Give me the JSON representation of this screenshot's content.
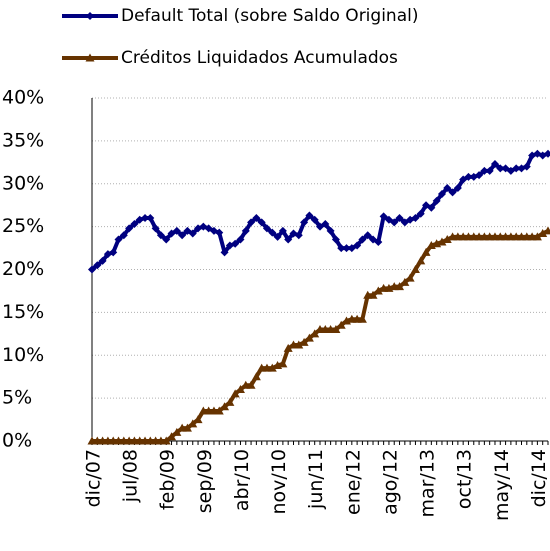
{
  "chart_data": {
    "type": "line",
    "categories": [
      "dic/07",
      null,
      null,
      null,
      null,
      null,
      null,
      "jul/08",
      null,
      null,
      null,
      null,
      null,
      null,
      "feb/09",
      null,
      null,
      null,
      null,
      null,
      null,
      "sep/09",
      null,
      null,
      null,
      null,
      null,
      null,
      "abr/10",
      null,
      null,
      null,
      null,
      null,
      null,
      "nov/10",
      null,
      null,
      null,
      null,
      null,
      null,
      "jun/11",
      null,
      null,
      null,
      null,
      null,
      null,
      "ene/12",
      null,
      null,
      null,
      null,
      null,
      null,
      "ago/12",
      null,
      null,
      null,
      null,
      null,
      null,
      "mar/13",
      null,
      null,
      null,
      null,
      null,
      null,
      "oct/13",
      null,
      null,
      null,
      null,
      null,
      null,
      "may/14",
      null,
      null,
      null,
      null,
      null,
      null,
      "dic/14",
      null,
      null
    ],
    "series": [
      {
        "name": "Default Total (sobre Saldo Original)",
        "color": "#000080",
        "marker": "diamond",
        "values": [
          20,
          20.5,
          21,
          21.8,
          22,
          23.5,
          24,
          24.8,
          25.3,
          25.8,
          26,
          26,
          24.8,
          24,
          23.5,
          24.2,
          24.5,
          24,
          24.5,
          24.2,
          24.8,
          25,
          24.8,
          24.5,
          24.3,
          22,
          22.8,
          23,
          23.5,
          24.5,
          25.5,
          26,
          25.5,
          24.8,
          24.3,
          23.8,
          24.5,
          23.5,
          24.2,
          24,
          25.5,
          26.3,
          25.8,
          25,
          25.3,
          24.5,
          23.5,
          22.5,
          22.5,
          22.5,
          22.8,
          23.5,
          24,
          23.5,
          23.2,
          26.2,
          25.8,
          25.5,
          26,
          25.5,
          25.8,
          26,
          26.5,
          27.5,
          27.2,
          28,
          28.8,
          29.5,
          29,
          29.5,
          30.5,
          30.8,
          30.8,
          31,
          31.5,
          31.5,
          32.3,
          31.8,
          31.8,
          31.5,
          31.8,
          31.8,
          32,
          33.3,
          33.5,
          33.3,
          33.5
        ]
      },
      {
        "name": "Créditos Liquidados Acumulados",
        "color": "#663300",
        "marker": "triangle",
        "values": [
          0,
          0,
          0,
          0,
          0,
          0,
          0,
          0,
          0,
          0,
          0,
          0,
          0,
          0,
          0,
          0.5,
          1,
          1.5,
          1.5,
          2,
          2.5,
          3.5,
          3.5,
          3.5,
          3.5,
          4,
          4.5,
          5.5,
          6,
          6.5,
          6.5,
          7.5,
          8.5,
          8.5,
          8.5,
          8.8,
          9,
          10.8,
          11.2,
          11.2,
          11.5,
          12,
          12.5,
          13,
          13,
          13,
          13,
          13.5,
          14,
          14.2,
          14.2,
          14.2,
          17,
          17,
          17.5,
          17.8,
          17.8,
          18,
          18,
          18.5,
          19,
          20,
          21,
          22,
          22.8,
          23,
          23.2,
          23.5,
          23.8,
          23.8,
          23.8,
          23.8,
          23.8,
          23.8,
          23.8,
          23.8,
          23.8,
          23.8,
          23.8,
          23.8,
          23.8,
          23.8,
          23.8,
          23.8,
          23.8,
          24.2,
          24.5
        ]
      }
    ],
    "ylim": [
      0,
      40
    ],
    "yticks": [
      {
        "value": 0,
        "label": "0%"
      },
      {
        "value": 5,
        "label": "5%"
      },
      {
        "value": 10,
        "label": "10%"
      },
      {
        "value": 15,
        "label": "15%"
      },
      {
        "value": 20,
        "label": "20%"
      },
      {
        "value": 25,
        "label": "25%"
      },
      {
        "value": 30,
        "label": "30%"
      },
      {
        "value": 35,
        "label": "35%"
      },
      {
        "value": 40,
        "label": "40%"
      }
    ],
    "grid": true
  }
}
